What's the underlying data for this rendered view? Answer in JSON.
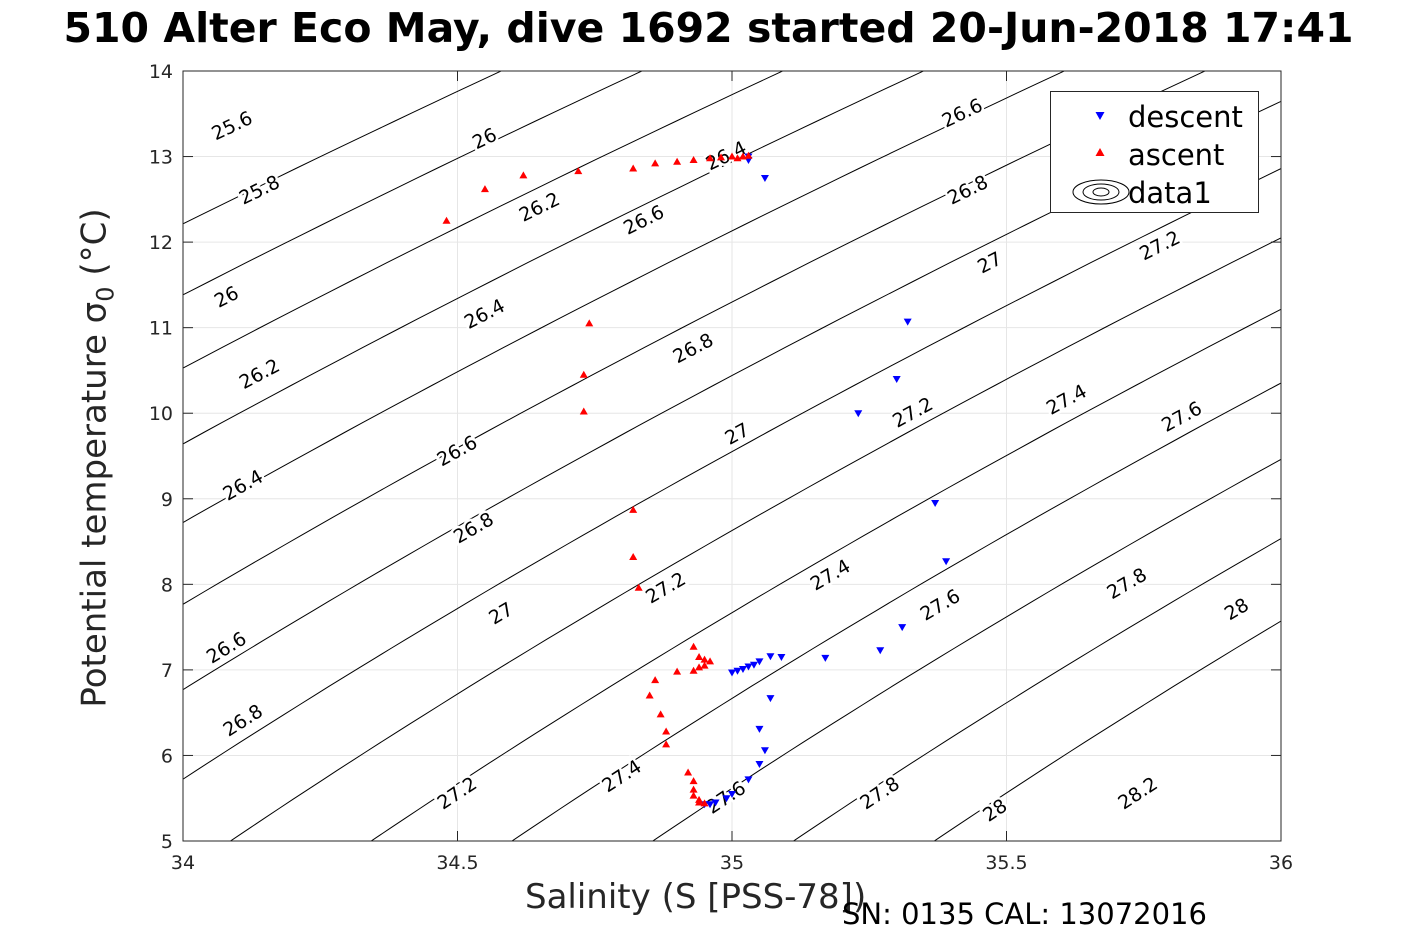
{
  "chart_data": {
    "type": "scatter",
    "title": "510 Alter Eco May, dive 1692 started 20-Jun-2018 17:41",
    "xlabel": "Salinity (S [PSS-78])",
    "ylabel": "Potential temperature",
    "ylabel_sub": "0",
    "ylabel_units": " (°C)",
    "xlim": [
      34,
      36
    ],
    "ylim": [
      5,
      14
    ],
    "x_ticks": [
      "34",
      "34.5",
      "35",
      "35.5",
      "36"
    ],
    "y_ticks": [
      "5",
      "6",
      "7",
      "8",
      "9",
      "10",
      "11",
      "12",
      "13",
      "14"
    ],
    "grid": true,
    "legend_position": "top-right",
    "contours": {
      "name": "data1",
      "levels": [
        25.6,
        25.8,
        26,
        26.2,
        26.4,
        26.6,
        26.8,
        27,
        27.2,
        27.4,
        27.6,
        27.8,
        28,
        28.2
      ],
      "labels": [
        {
          "text": "25.6",
          "x": 34.09,
          "y": 13.35
        },
        {
          "text": "25.8",
          "x": 34.14,
          "y": 12.6
        },
        {
          "text": "26",
          "x": 34.55,
          "y": 13.2
        },
        {
          "text": "26.2",
          "x": 34.65,
          "y": 12.4
        },
        {
          "text": "26.4",
          "x": 34.99,
          "y": 13.0
        },
        {
          "text": "26",
          "x": 34.08,
          "y": 11.35
        },
        {
          "text": "26.2",
          "x": 34.14,
          "y": 10.45
        },
        {
          "text": "26.4",
          "x": 34.55,
          "y": 11.15
        },
        {
          "text": "26.6",
          "x": 34.84,
          "y": 12.25
        },
        {
          "text": "26.6",
          "x": 35.42,
          "y": 13.5
        },
        {
          "text": "26.8",
          "x": 35.43,
          "y": 12.6
        },
        {
          "text": "26.4",
          "x": 34.11,
          "y": 9.15
        },
        {
          "text": "26.6",
          "x": 34.5,
          "y": 9.55
        },
        {
          "text": "26.8",
          "x": 34.93,
          "y": 10.75
        },
        {
          "text": "27",
          "x": 35.47,
          "y": 11.75
        },
        {
          "text": "27.2",
          "x": 35.78,
          "y": 11.95
        },
        {
          "text": "26.6",
          "x": 34.08,
          "y": 7.25
        },
        {
          "text": "26.8",
          "x": 34.53,
          "y": 8.65
        },
        {
          "text": "27",
          "x": 35.01,
          "y": 9.75
        },
        {
          "text": "27.2",
          "x": 35.33,
          "y": 10.0
        },
        {
          "text": "27.4",
          "x": 35.61,
          "y": 10.15
        },
        {
          "text": "27.6",
          "x": 35.82,
          "y": 9.95
        },
        {
          "text": "26.8",
          "x": 34.11,
          "y": 6.4
        },
        {
          "text": "27",
          "x": 34.58,
          "y": 7.65
        },
        {
          "text": "27.2",
          "x": 34.88,
          "y": 7.95
        },
        {
          "text": "27.4",
          "x": 35.18,
          "y": 8.1
        },
        {
          "text": "27.6",
          "x": 35.38,
          "y": 7.75
        },
        {
          "text": "27.8",
          "x": 35.72,
          "y": 8.0
        },
        {
          "text": "28",
          "x": 35.92,
          "y": 7.7
        },
        {
          "text": "27.2",
          "x": 34.5,
          "y": 5.55
        },
        {
          "text": "27.4",
          "x": 34.8,
          "y": 5.75
        },
        {
          "text": "27.6",
          "x": 34.99,
          "y": 5.5
        },
        {
          "text": "27.8",
          "x": 35.27,
          "y": 5.55
        },
        {
          "text": "28",
          "x": 35.48,
          "y": 5.35
        },
        {
          "text": "28.2",
          "x": 35.74,
          "y": 5.55
        }
      ]
    },
    "series": [
      {
        "name": "descent",
        "color": "#0000ff",
        "marker": "triangle-down",
        "points": [
          [
            35.03,
            13.0
          ],
          [
            35.03,
            12.96
          ],
          [
            35.06,
            12.75
          ],
          [
            35.32,
            11.07
          ],
          [
            35.3,
            10.4
          ],
          [
            35.23,
            10.0
          ],
          [
            35.37,
            8.95
          ],
          [
            35.39,
            8.27
          ],
          [
            35.31,
            7.5
          ],
          [
            35.27,
            7.23
          ],
          [
            35.17,
            7.14
          ],
          [
            35.09,
            7.15
          ],
          [
            35.07,
            7.16
          ],
          [
            35.05,
            7.1
          ],
          [
            35.04,
            7.06
          ],
          [
            35.03,
            7.04
          ],
          [
            35.02,
            7.01
          ],
          [
            35.01,
            6.99
          ],
          [
            35.0,
            6.97
          ],
          [
            35.07,
            6.67
          ],
          [
            35.05,
            6.31
          ],
          [
            35.06,
            6.06
          ],
          [
            35.05,
            5.9
          ],
          [
            35.03,
            5.72
          ],
          [
            35.0,
            5.55
          ],
          [
            34.99,
            5.5
          ],
          [
            34.97,
            5.45
          ],
          [
            34.96,
            5.43
          ],
          [
            34.95,
            5.43
          ]
        ]
      },
      {
        "name": "ascent",
        "color": "#ff0000",
        "marker": "triangle-up",
        "points": [
          [
            34.48,
            12.25
          ],
          [
            34.55,
            12.62
          ],
          [
            34.62,
            12.78
          ],
          [
            34.72,
            12.83
          ],
          [
            34.82,
            12.86
          ],
          [
            34.86,
            12.92
          ],
          [
            34.9,
            12.94
          ],
          [
            34.93,
            12.96
          ],
          [
            34.96,
            12.98
          ],
          [
            34.98,
            12.99
          ],
          [
            35.0,
            13.0
          ],
          [
            35.01,
            12.98
          ],
          [
            35.02,
            13.0
          ],
          [
            35.03,
            13.01
          ],
          [
            34.74,
            11.05
          ],
          [
            34.73,
            10.45
          ],
          [
            34.73,
            10.02
          ],
          [
            34.82,
            8.87
          ],
          [
            34.82,
            8.32
          ],
          [
            34.83,
            7.96
          ],
          [
            34.93,
            7.27
          ],
          [
            34.94,
            7.15
          ],
          [
            34.95,
            7.12
          ],
          [
            34.96,
            7.1
          ],
          [
            34.95,
            7.05
          ],
          [
            34.94,
            7.03
          ],
          [
            34.93,
            6.99
          ],
          [
            34.9,
            6.98
          ],
          [
            34.86,
            6.88
          ],
          [
            34.85,
            6.7
          ],
          [
            34.87,
            6.48
          ],
          [
            34.88,
            6.28
          ],
          [
            34.88,
            6.13
          ],
          [
            34.92,
            5.8
          ],
          [
            34.93,
            5.7
          ],
          [
            34.93,
            5.6
          ],
          [
            34.93,
            5.53
          ],
          [
            34.94,
            5.48
          ],
          [
            34.94,
            5.45
          ],
          [
            34.95,
            5.44
          ]
        ]
      }
    ],
    "legend": [
      "descent",
      "ascent",
      "data1"
    ]
  },
  "footer": "SN: 0135  CAL: 13072016"
}
